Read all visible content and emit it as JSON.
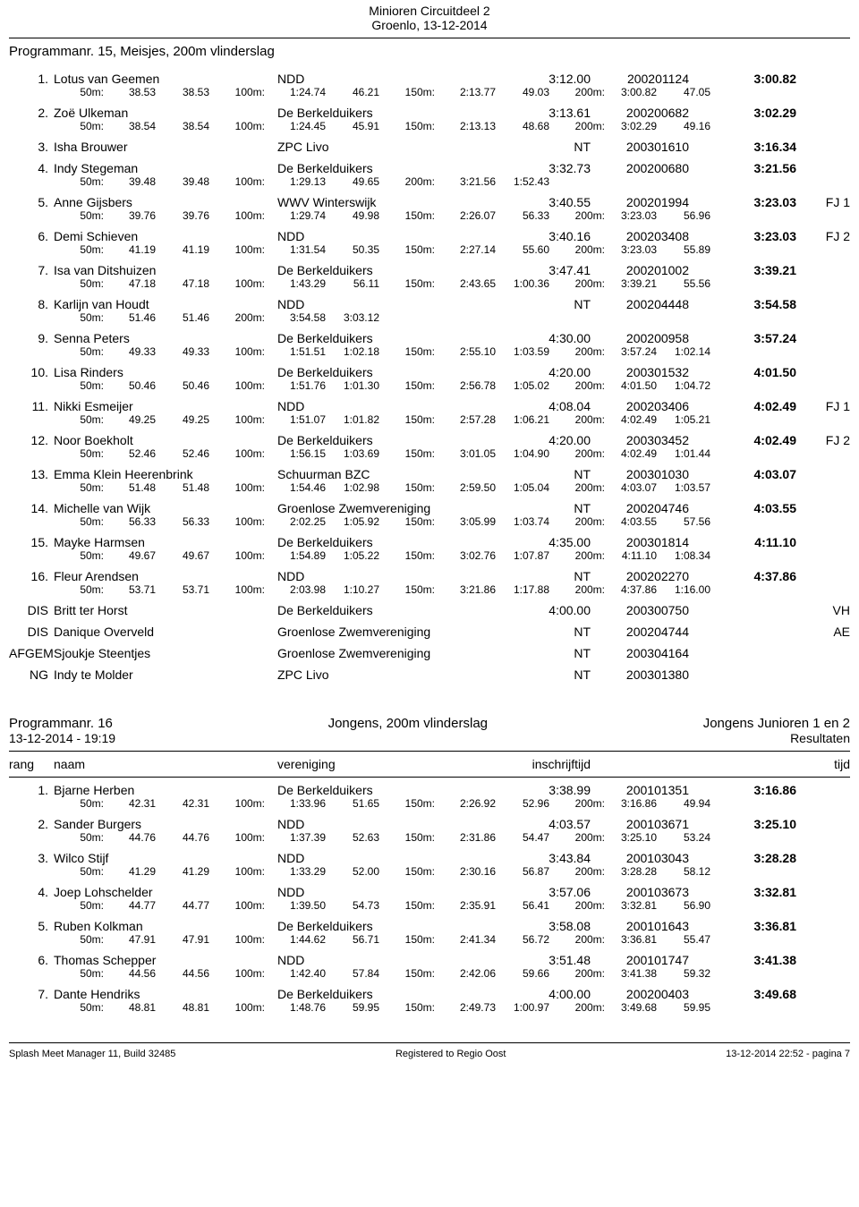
{
  "meet": {
    "title": "Minioren Circuitdeel 2",
    "sub": "Groenlo, 13-12-2014"
  },
  "event1": {
    "title": "Programmanr. 15, Meisjes, 200m vlinderslag",
    "rows": [
      {
        "rank": "1.",
        "name": "Lotus van Geemen",
        "club": "NDD",
        "seed": "3:12.00",
        "reg": "200201124",
        "final": "3:00.82",
        "note": "",
        "s": [
          [
            "50m:",
            "38.53",
            "38.53"
          ],
          [
            "100m:",
            "1:24.74",
            "46.21"
          ],
          [
            "150m:",
            "2:13.77",
            "49.03"
          ],
          [
            "200m:",
            "3:00.82",
            "47.05"
          ]
        ]
      },
      {
        "rank": "2.",
        "name": "Zoë Ulkeman",
        "club": "De Berkelduikers",
        "seed": "3:13.61",
        "reg": "200200682",
        "final": "3:02.29",
        "note": "",
        "s": [
          [
            "50m:",
            "38.54",
            "38.54"
          ],
          [
            "100m:",
            "1:24.45",
            "45.91"
          ],
          [
            "150m:",
            "2:13.13",
            "48.68"
          ],
          [
            "200m:",
            "3:02.29",
            "49.16"
          ]
        ]
      },
      {
        "rank": "3.",
        "name": "Isha Brouwer",
        "club": "ZPC Livo",
        "seed": "NT",
        "reg": "200301610",
        "final": "3:16.34",
        "note": "",
        "s": null
      },
      {
        "rank": "4.",
        "name": "Indy Stegeman",
        "club": "De Berkelduikers",
        "seed": "3:32.73",
        "reg": "200200680",
        "final": "3:21.56",
        "note": "",
        "s": [
          [
            "50m:",
            "39.48",
            "39.48"
          ],
          [
            "100m:",
            "1:29.13",
            "49.65"
          ],
          [
            "200m:",
            "3:21.56",
            "1:52.43"
          ],
          [
            "",
            "",
            ""
          ]
        ]
      },
      {
        "rank": "5.",
        "name": "Anne Gijsbers",
        "club": "WWV Winterswijk",
        "seed": "3:40.55",
        "reg": "200201994",
        "final": "3:23.03",
        "note": "FJ 1",
        "s": [
          [
            "50m:",
            "39.76",
            "39.76"
          ],
          [
            "100m:",
            "1:29.74",
            "49.98"
          ],
          [
            "150m:",
            "2:26.07",
            "56.33"
          ],
          [
            "200m:",
            "3:23.03",
            "56.96"
          ]
        ]
      },
      {
        "rank": "6.",
        "name": "Demi Schieven",
        "club": "NDD",
        "seed": "3:40.16",
        "reg": "200203408",
        "final": "3:23.03",
        "note": "FJ 2",
        "s": [
          [
            "50m:",
            "41.19",
            "41.19"
          ],
          [
            "100m:",
            "1:31.54",
            "50.35"
          ],
          [
            "150m:",
            "2:27.14",
            "55.60"
          ],
          [
            "200m:",
            "3:23.03",
            "55.89"
          ]
        ]
      },
      {
        "rank": "7.",
        "name": "Isa van Ditshuizen",
        "club": "De Berkelduikers",
        "seed": "3:47.41",
        "reg": "200201002",
        "final": "3:39.21",
        "note": "",
        "s": [
          [
            "50m:",
            "47.18",
            "47.18"
          ],
          [
            "100m:",
            "1:43.29",
            "56.11"
          ],
          [
            "150m:",
            "2:43.65",
            "1:00.36"
          ],
          [
            "200m:",
            "3:39.21",
            "55.56"
          ]
        ]
      },
      {
        "rank": "8.",
        "name": "Karlijn van Houdt",
        "club": "NDD",
        "seed": "NT",
        "reg": "200204448",
        "final": "3:54.58",
        "note": "",
        "s": [
          [
            "50m:",
            "51.46",
            "51.46"
          ],
          [
            "200m:",
            "3:54.58",
            "3:03.12"
          ],
          [
            "",
            "",
            ""
          ],
          [
            "",
            "",
            ""
          ]
        ]
      },
      {
        "rank": "9.",
        "name": "Senna Peters",
        "club": "De Berkelduikers",
        "seed": "4:30.00",
        "reg": "200200958",
        "final": "3:57.24",
        "note": "",
        "s": [
          [
            "50m:",
            "49.33",
            "49.33"
          ],
          [
            "100m:",
            "1:51.51",
            "1:02.18"
          ],
          [
            "150m:",
            "2:55.10",
            "1:03.59"
          ],
          [
            "200m:",
            "3:57.24",
            "1:02.14"
          ]
        ]
      },
      {
        "rank": "10.",
        "name": "Lisa Rinders",
        "club": "De Berkelduikers",
        "seed": "4:20.00",
        "reg": "200301532",
        "final": "4:01.50",
        "note": "",
        "s": [
          [
            "50m:",
            "50.46",
            "50.46"
          ],
          [
            "100m:",
            "1:51.76",
            "1:01.30"
          ],
          [
            "150m:",
            "2:56.78",
            "1:05.02"
          ],
          [
            "200m:",
            "4:01.50",
            "1:04.72"
          ]
        ]
      },
      {
        "rank": "11.",
        "name": "Nikki Esmeijer",
        "club": "NDD",
        "seed": "4:08.04",
        "reg": "200203406",
        "final": "4:02.49",
        "note": "FJ 1",
        "s": [
          [
            "50m:",
            "49.25",
            "49.25"
          ],
          [
            "100m:",
            "1:51.07",
            "1:01.82"
          ],
          [
            "150m:",
            "2:57.28",
            "1:06.21"
          ],
          [
            "200m:",
            "4:02.49",
            "1:05.21"
          ]
        ]
      },
      {
        "rank": "12.",
        "name": "Noor Boekholt",
        "club": "De Berkelduikers",
        "seed": "4:20.00",
        "reg": "200303452",
        "final": "4:02.49",
        "note": "FJ 2",
        "s": [
          [
            "50m:",
            "52.46",
            "52.46"
          ],
          [
            "100m:",
            "1:56.15",
            "1:03.69"
          ],
          [
            "150m:",
            "3:01.05",
            "1:04.90"
          ],
          [
            "200m:",
            "4:02.49",
            "1:01.44"
          ]
        ]
      },
      {
        "rank": "13.",
        "name": "Emma Klein Heerenbrink",
        "club": "Schuurman BZC",
        "seed": "NT",
        "reg": "200301030",
        "final": "4:03.07",
        "note": "",
        "s": [
          [
            "50m:",
            "51.48",
            "51.48"
          ],
          [
            "100m:",
            "1:54.46",
            "1:02.98"
          ],
          [
            "150m:",
            "2:59.50",
            "1:05.04"
          ],
          [
            "200m:",
            "4:03.07",
            "1:03.57"
          ]
        ]
      },
      {
        "rank": "14.",
        "name": "Michelle van Wijk",
        "club": "Groenlose Zwemvereniging",
        "seed": "NT",
        "reg": "200204746",
        "final": "4:03.55",
        "note": "",
        "s": [
          [
            "50m:",
            "56.33",
            "56.33"
          ],
          [
            "100m:",
            "2:02.25",
            "1:05.92"
          ],
          [
            "150m:",
            "3:05.99",
            "1:03.74"
          ],
          [
            "200m:",
            "4:03.55",
            "57.56"
          ]
        ]
      },
      {
        "rank": "15.",
        "name": "Mayke Harmsen",
        "club": "De Berkelduikers",
        "seed": "4:35.00",
        "reg": "200301814",
        "final": "4:11.10",
        "note": "",
        "s": [
          [
            "50m:",
            "49.67",
            "49.67"
          ],
          [
            "100m:",
            "1:54.89",
            "1:05.22"
          ],
          [
            "150m:",
            "3:02.76",
            "1:07.87"
          ],
          [
            "200m:",
            "4:11.10",
            "1:08.34"
          ]
        ]
      },
      {
        "rank": "16.",
        "name": "Fleur Arendsen",
        "club": "NDD",
        "seed": "NT",
        "reg": "200202270",
        "final": "4:37.86",
        "note": "",
        "s": [
          [
            "50m:",
            "53.71",
            "53.71"
          ],
          [
            "100m:",
            "2:03.98",
            "1:10.27"
          ],
          [
            "150m:",
            "3:21.86",
            "1:17.88"
          ],
          [
            "200m:",
            "4:37.86",
            "1:16.00"
          ]
        ]
      },
      {
        "rank": "DIS",
        "name": "Britt ter Horst",
        "club": "De Berkelduikers",
        "seed": "4:00.00",
        "reg": "200300750",
        "final": "",
        "note": "VH",
        "s": null
      },
      {
        "rank": "DIS",
        "name": "Danique Overveld",
        "club": "Groenlose Zwemvereniging",
        "seed": "NT",
        "reg": "200204744",
        "final": "",
        "note": "AE",
        "s": null
      },
      {
        "rank": "AFGEM",
        "name": "Sjoukje Steentjes",
        "club": "Groenlose Zwemvereniging",
        "seed": "NT",
        "reg": "200304164",
        "final": "",
        "note": "",
        "s": null
      },
      {
        "rank": "NG",
        "name": "Indy te Molder",
        "club": "ZPC Livo",
        "seed": "NT",
        "reg": "200301380",
        "final": "",
        "note": "",
        "s": null
      }
    ]
  },
  "event2": {
    "hdr_left": "Programmanr. 16",
    "hdr_center": "Jongens, 200m vlinderslag",
    "hdr_right": "Jongens Junioren 1 en 2",
    "hdr2_left": "13-12-2014 - 19:19",
    "hdr2_right": "Resultaten",
    "cols": {
      "rank": "rang",
      "name": "naam",
      "club": "vereniging",
      "seed": "inschrijftijd",
      "final": "tijd"
    },
    "rows": [
      {
        "rank": "1.",
        "name": "Bjarne Herben",
        "club": "De Berkelduikers",
        "seed": "3:38.99",
        "reg": "200101351",
        "final": "3:16.86",
        "note": "",
        "s": [
          [
            "50m:",
            "42.31",
            "42.31"
          ],
          [
            "100m:",
            "1:33.96",
            "51.65"
          ],
          [
            "150m:",
            "2:26.92",
            "52.96"
          ],
          [
            "200m:",
            "3:16.86",
            "49.94"
          ]
        ]
      },
      {
        "rank": "2.",
        "name": "Sander Burgers",
        "club": "NDD",
        "seed": "4:03.57",
        "reg": "200103671",
        "final": "3:25.10",
        "note": "",
        "s": [
          [
            "50m:",
            "44.76",
            "44.76"
          ],
          [
            "100m:",
            "1:37.39",
            "52.63"
          ],
          [
            "150m:",
            "2:31.86",
            "54.47"
          ],
          [
            "200m:",
            "3:25.10",
            "53.24"
          ]
        ]
      },
      {
        "rank": "3.",
        "name": "Wilco Stijf",
        "club": "NDD",
        "seed": "3:43.84",
        "reg": "200103043",
        "final": "3:28.28",
        "note": "",
        "s": [
          [
            "50m:",
            "41.29",
            "41.29"
          ],
          [
            "100m:",
            "1:33.29",
            "52.00"
          ],
          [
            "150m:",
            "2:30.16",
            "56.87"
          ],
          [
            "200m:",
            "3:28.28",
            "58.12"
          ]
        ]
      },
      {
        "rank": "4.",
        "name": "Joep Lohschelder",
        "club": "NDD",
        "seed": "3:57.06",
        "reg": "200103673",
        "final": "3:32.81",
        "note": "",
        "s": [
          [
            "50m:",
            "44.77",
            "44.77"
          ],
          [
            "100m:",
            "1:39.50",
            "54.73"
          ],
          [
            "150m:",
            "2:35.91",
            "56.41"
          ],
          [
            "200m:",
            "3:32.81",
            "56.90"
          ]
        ]
      },
      {
        "rank": "5.",
        "name": "Ruben Kolkman",
        "club": "De Berkelduikers",
        "seed": "3:58.08",
        "reg": "200101643",
        "final": "3:36.81",
        "note": "",
        "s": [
          [
            "50m:",
            "47.91",
            "47.91"
          ],
          [
            "100m:",
            "1:44.62",
            "56.71"
          ],
          [
            "150m:",
            "2:41.34",
            "56.72"
          ],
          [
            "200m:",
            "3:36.81",
            "55.47"
          ]
        ]
      },
      {
        "rank": "6.",
        "name": "Thomas Schepper",
        "club": "NDD",
        "seed": "3:51.48",
        "reg": "200101747",
        "final": "3:41.38",
        "note": "",
        "s": [
          [
            "50m:",
            "44.56",
            "44.56"
          ],
          [
            "100m:",
            "1:42.40",
            "57.84"
          ],
          [
            "150m:",
            "2:42.06",
            "59.66"
          ],
          [
            "200m:",
            "3:41.38",
            "59.32"
          ]
        ]
      },
      {
        "rank": "7.",
        "name": "Dante Hendriks",
        "club": "De Berkelduikers",
        "seed": "4:00.00",
        "reg": "200200403",
        "final": "3:49.68",
        "note": "",
        "s": [
          [
            "50m:",
            "48.81",
            "48.81"
          ],
          [
            "100m:",
            "1:48.76",
            "59.95"
          ],
          [
            "150m:",
            "2:49.73",
            "1:00.97"
          ],
          [
            "200m:",
            "3:49.68",
            "59.95"
          ]
        ]
      }
    ]
  },
  "footer": {
    "left": "Splash Meet Manager 11, Build 32485",
    "center": "Registered to Regio Oost",
    "right": "13-12-2014 22:52 - pagina 7"
  }
}
